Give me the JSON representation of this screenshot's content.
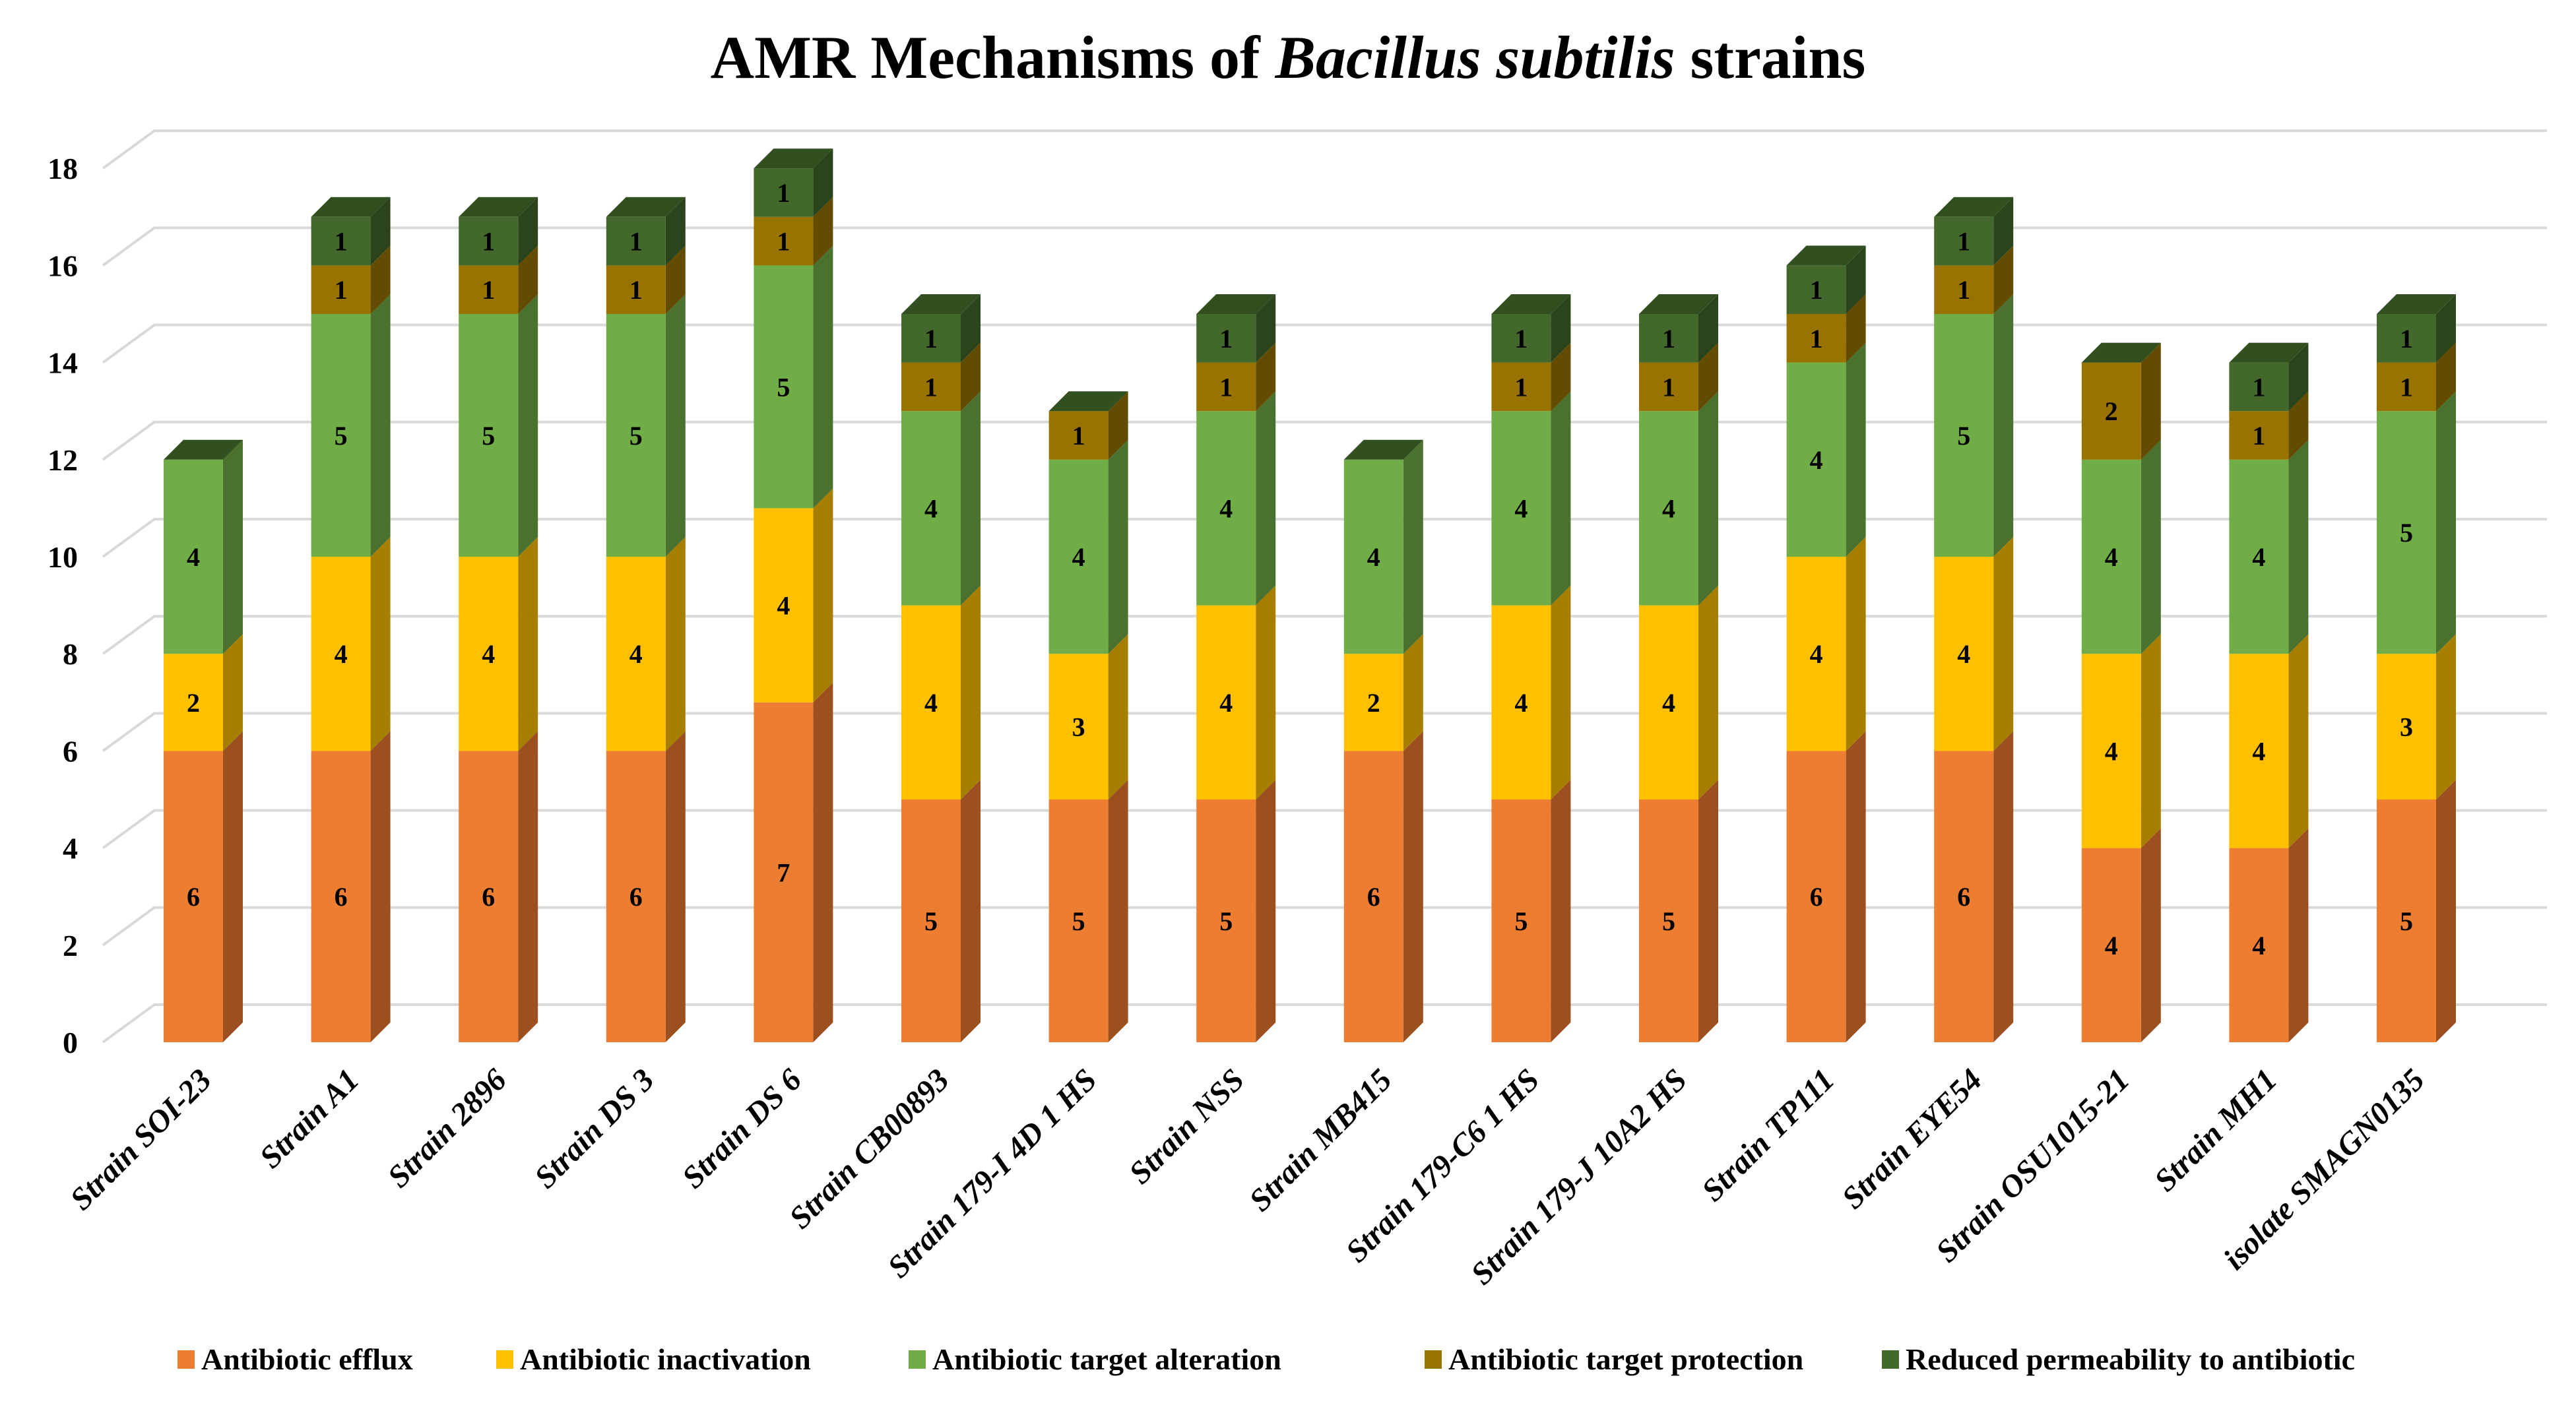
{
  "chart_data": {
    "type": "bar",
    "stacked": true,
    "style": "3d-stacked-column",
    "title": "AMR Mechanisms of Bacillus subtilis strains",
    "title_parts": [
      {
        "text": "AMR Mechanisms of ",
        "italic": false
      },
      {
        "text": "Bacillus subtilis",
        "italic": true
      },
      {
        "text": " strains",
        "italic": false
      }
    ],
    "xlabel": "",
    "ylabel": "",
    "ylim": [
      0,
      18
    ],
    "yticks": [
      0,
      2,
      4,
      6,
      8,
      10,
      12,
      14,
      16,
      18
    ],
    "grid": true,
    "legend_position": "bottom",
    "categories": [
      "Strain SOI-23",
      "Strain A1",
      "Strain 2896",
      "Strain DS 3",
      "Strain DS 6",
      "Strain CB00893",
      "Strain 179-I 4D 1 HS",
      "Strain NSS",
      "Strain MB415",
      "Strain 179-C6 1 HS",
      "Strain 179-J 10A2 HS",
      "Strain TP111",
      "Strain EYE54",
      "Strain OSU1015-21",
      "Strain MH1",
      "isolate SMAGN0135"
    ],
    "series": [
      {
        "name": "Antibiotic efflux",
        "color": "#ED7D31",
        "side_color": "#9C5020",
        "values": [
          6,
          6,
          6,
          6,
          7,
          5,
          5,
          5,
          6,
          5,
          5,
          6,
          6,
          4,
          4,
          5
        ]
      },
      {
        "name": "Antibiotic inactivation",
        "color": "#FFC000",
        "side_color": "#A67F00",
        "values": [
          2,
          4,
          4,
          4,
          4,
          4,
          3,
          4,
          2,
          4,
          4,
          4,
          4,
          4,
          4,
          3
        ]
      },
      {
        "name": "Antibiotic target alteration",
        "color": "#70AD47",
        "side_color": "#4A712E",
        "values": [
          4,
          5,
          5,
          5,
          5,
          4,
          4,
          4,
          4,
          4,
          4,
          4,
          5,
          4,
          4,
          5
        ]
      },
      {
        "name": "Antibiotic target protection",
        "color": "#997300",
        "side_color": "#634B00",
        "values": [
          0,
          1,
          1,
          1,
          1,
          1,
          1,
          1,
          0,
          1,
          1,
          1,
          1,
          2,
          1,
          1
        ]
      },
      {
        "name": "Reduced permeability to antibiotic",
        "color": "#43682B",
        "side_color": "#2B441C",
        "values": [
          0,
          1,
          1,
          1,
          1,
          1,
          0,
          1,
          0,
          1,
          1,
          1,
          1,
          0,
          1,
          1
        ]
      }
    ],
    "totals": [
      12,
      17,
      17,
      17,
      18,
      15,
      13,
      15,
      12,
      15,
      15,
      16,
      17,
      14,
      14,
      15
    ]
  }
}
